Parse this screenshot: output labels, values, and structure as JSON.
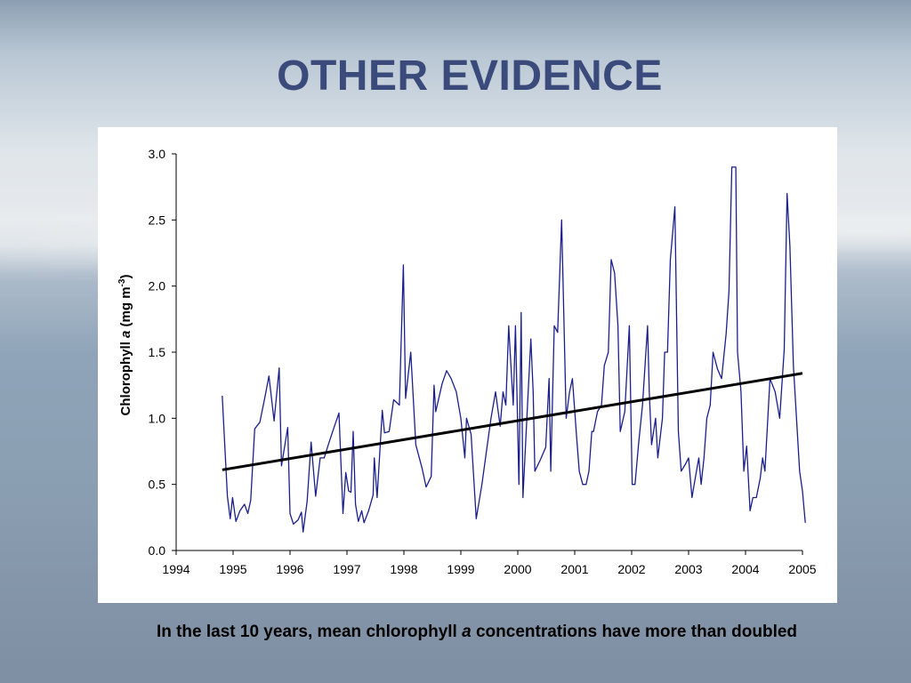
{
  "slide": {
    "title": "OTHER EVIDENCE",
    "caption_pre": "In the last 10 years, mean chlorophyll ",
    "caption_italic": "a",
    "caption_post": " concentrations have more than doubled"
  },
  "colors": {
    "title": "#3a4a7a",
    "series": "#1a1f8a",
    "trend": "#000000"
  },
  "chart_data": {
    "type": "line",
    "title": "",
    "xlabel": "",
    "ylabel_parts": [
      "Chlorophyll ",
      "a",
      " (mg m",
      "-3",
      ")"
    ],
    "xlim": [
      1994,
      2005
    ],
    "ylim": [
      0,
      3.0
    ],
    "x_ticks": [
      "1994",
      "1995",
      "1996",
      "1997",
      "1998",
      "1999",
      "2000",
      "2001",
      "2002",
      "2003",
      "2004",
      "2005"
    ],
    "y_ticks": [
      "0.0",
      "0.5",
      "1.0",
      "1.5",
      "2.0",
      "2.5",
      "3.0"
    ],
    "grid": false,
    "series": [
      {
        "values": [
          [
            1994.81,
            1.17
          ],
          [
            1994.9,
            0.41
          ],
          [
            1994.95,
            0.24
          ],
          [
            1994.99,
            0.4
          ],
          [
            1995.05,
            0.22
          ],
          [
            1995.12,
            0.3
          ],
          [
            1995.2,
            0.35
          ],
          [
            1995.26,
            0.28
          ],
          [
            1995.31,
            0.38
          ],
          [
            1995.38,
            0.92
          ],
          [
            1995.47,
            0.97
          ],
          [
            1995.56,
            1.16
          ],
          [
            1995.63,
            1.32
          ],
          [
            1995.72,
            0.98
          ],
          [
            1995.81,
            1.38
          ],
          [
            1995.85,
            0.64
          ],
          [
            1995.96,
            0.93
          ],
          [
            1996.0,
            0.28
          ],
          [
            1996.06,
            0.2
          ],
          [
            1996.14,
            0.23
          ],
          [
            1996.2,
            0.29
          ],
          [
            1996.23,
            0.14
          ],
          [
            1996.3,
            0.37
          ],
          [
            1996.37,
            0.82
          ],
          [
            1996.45,
            0.41
          ],
          [
            1996.53,
            0.7
          ],
          [
            1996.6,
            0.7
          ],
          [
            1996.68,
            0.81
          ],
          [
            1996.78,
            0.94
          ],
          [
            1996.86,
            1.04
          ],
          [
            1996.93,
            0.28
          ],
          [
            1996.98,
            0.59
          ],
          [
            1997.03,
            0.45
          ],
          [
            1997.07,
            0.44
          ],
          [
            1997.11,
            0.9
          ],
          [
            1997.15,
            0.35
          ],
          [
            1997.2,
            0.22
          ],
          [
            1997.26,
            0.3
          ],
          [
            1997.3,
            0.21
          ],
          [
            1997.38,
            0.3
          ],
          [
            1997.46,
            0.42
          ],
          [
            1997.48,
            0.7
          ],
          [
            1997.53,
            0.4
          ],
          [
            1997.62,
            1.06
          ],
          [
            1997.66,
            0.89
          ],
          [
            1997.74,
            0.9
          ],
          [
            1997.82,
            1.14
          ],
          [
            1997.92,
            1.1
          ],
          [
            1997.99,
            2.16
          ],
          [
            1998.03,
            1.15
          ],
          [
            1998.12,
            1.5
          ],
          [
            1998.21,
            0.8
          ],
          [
            1998.32,
            0.62
          ],
          [
            1998.39,
            0.48
          ],
          [
            1998.48,
            0.56
          ],
          [
            1998.53,
            1.25
          ],
          [
            1998.56,
            1.05
          ],
          [
            1998.67,
            1.26
          ],
          [
            1998.75,
            1.36
          ],
          [
            1998.83,
            1.3
          ],
          [
            1998.92,
            1.2
          ],
          [
            1999.0,
            1.0
          ],
          [
            1999.07,
            0.7
          ],
          [
            1999.1,
            1.0
          ],
          [
            1999.18,
            0.88
          ],
          [
            1999.27,
            0.24
          ],
          [
            1999.37,
            0.5
          ],
          [
            1999.46,
            0.78
          ],
          [
            1999.53,
            1.0
          ],
          [
            1999.61,
            1.2
          ],
          [
            1999.69,
            0.94
          ],
          [
            1999.74,
            1.2
          ],
          [
            1999.79,
            1.1
          ],
          [
            1999.84,
            1.7
          ],
          [
            1999.88,
            1.4
          ],
          [
            1999.92,
            1.1
          ],
          [
            1999.96,
            1.7
          ],
          [
            2000.02,
            0.5
          ],
          [
            2000.06,
            1.8
          ],
          [
            2000.09,
            0.4
          ],
          [
            2000.16,
            1.0
          ],
          [
            2000.23,
            1.6
          ],
          [
            2000.27,
            1.2
          ],
          [
            2000.3,
            0.6
          ],
          [
            2000.39,
            0.68
          ],
          [
            2000.49,
            0.78
          ],
          [
            2000.55,
            1.3
          ],
          [
            2000.58,
            0.6
          ],
          [
            2000.64,
            1.7
          ],
          [
            2000.7,
            1.65
          ],
          [
            2000.77,
            2.5
          ],
          [
            2000.85,
            1.0
          ],
          [
            2000.91,
            1.2
          ],
          [
            2000.96,
            1.3
          ],
          [
            2001.03,
            0.88
          ],
          [
            2001.08,
            0.6
          ],
          [
            2001.14,
            0.5
          ],
          [
            2001.2,
            0.5
          ],
          [
            2001.25,
            0.6
          ],
          [
            2001.3,
            0.9
          ],
          [
            2001.33,
            0.9
          ],
          [
            2001.4,
            1.05
          ],
          [
            2001.47,
            1.1
          ],
          [
            2001.52,
            1.4
          ],
          [
            2001.59,
            1.5
          ],
          [
            2001.64,
            2.2
          ],
          [
            2001.7,
            2.1
          ],
          [
            2001.76,
            1.7
          ],
          [
            2001.8,
            0.9
          ],
          [
            2001.88,
            1.05
          ],
          [
            2001.96,
            1.7
          ],
          [
            2002.01,
            0.5
          ],
          [
            2002.06,
            0.5
          ],
          [
            2002.12,
            0.8
          ],
          [
            2002.19,
            1.1
          ],
          [
            2002.28,
            1.7
          ],
          [
            2002.31,
            1.2
          ],
          [
            2002.35,
            0.8
          ],
          [
            2002.42,
            1.0
          ],
          [
            2002.46,
            0.7
          ],
          [
            2002.54,
            1.0
          ],
          [
            2002.58,
            1.5
          ],
          [
            2002.63,
            1.5
          ],
          [
            2002.68,
            2.2
          ],
          [
            2002.76,
            2.6
          ],
          [
            2002.82,
            0.9
          ],
          [
            2002.87,
            0.6
          ],
          [
            2002.94,
            0.65
          ],
          [
            2003.0,
            0.7
          ],
          [
            2003.06,
            0.4
          ],
          [
            2003.13,
            0.58
          ],
          [
            2003.18,
            0.7
          ],
          [
            2003.22,
            0.5
          ],
          [
            2003.27,
            0.7
          ],
          [
            2003.32,
            1.0
          ],
          [
            2003.38,
            1.1
          ],
          [
            2003.43,
            1.5
          ],
          [
            2003.51,
            1.37
          ],
          [
            2003.58,
            1.3
          ],
          [
            2003.66,
            1.64
          ],
          [
            2003.71,
            1.96
          ],
          [
            2003.76,
            2.9
          ],
          [
            2003.83,
            2.9
          ],
          [
            2003.86,
            1.5
          ],
          [
            2003.92,
            1.2
          ],
          [
            2003.97,
            0.6
          ],
          [
            2004.02,
            0.79
          ],
          [
            2004.08,
            0.3
          ],
          [
            2004.13,
            0.4
          ],
          [
            2004.19,
            0.4
          ],
          [
            2004.26,
            0.55
          ],
          [
            2004.3,
            0.7
          ],
          [
            2004.34,
            0.6
          ],
          [
            2004.43,
            1.3
          ],
          [
            2004.52,
            1.2
          ],
          [
            2004.6,
            1.0
          ],
          [
            2004.68,
            1.52
          ],
          [
            2004.73,
            2.7
          ],
          [
            2004.78,
            2.3
          ],
          [
            2004.84,
            1.4
          ],
          [
            2004.95,
            0.6
          ],
          [
            2005.0,
            0.45
          ],
          [
            2005.05,
            0.21
          ]
        ]
      }
    ],
    "trendline": {
      "x": [
        1994.81,
        2005.0
      ],
      "y": [
        0.61,
        1.34
      ]
    }
  }
}
